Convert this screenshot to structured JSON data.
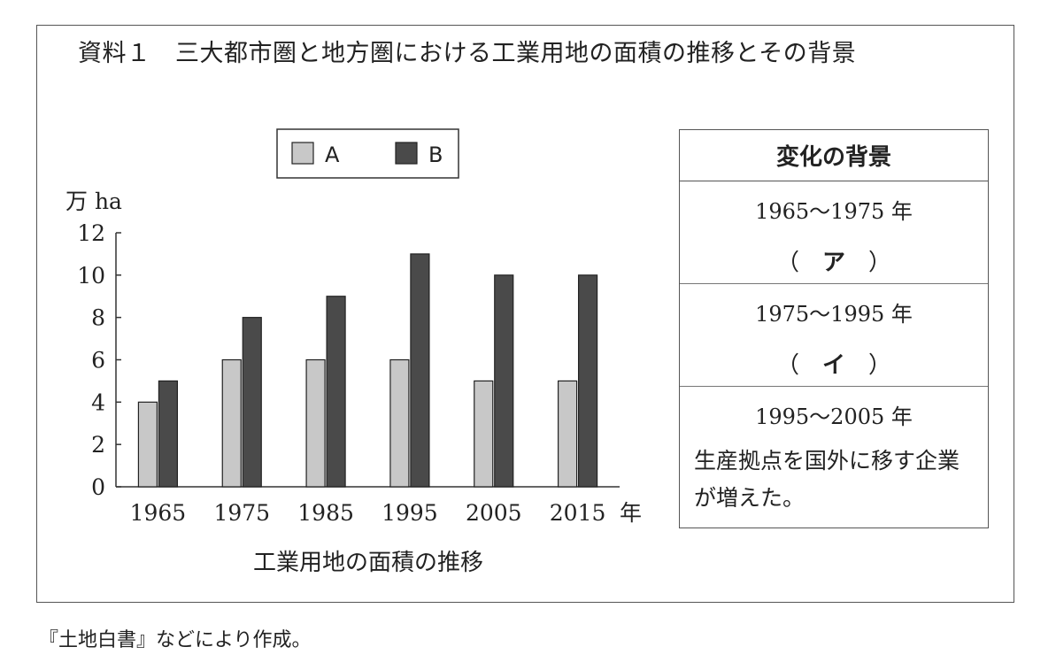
{
  "title": "資料１　三大都市圏と地方圏における工業用地の面積の推移とその背景",
  "source": "『土地白書』などにより作成。",
  "chart_data": {
    "type": "bar",
    "categories": [
      "1965",
      "1975",
      "1985",
      "1995",
      "2005",
      "2015"
    ],
    "series": [
      {
        "name": "A",
        "values": [
          4,
          6,
          6,
          6,
          5,
          5
        ],
        "color": "#c8c8c8"
      },
      {
        "name": "B",
        "values": [
          5,
          8,
          9,
          11,
          10,
          10
        ],
        "color": "#4a4a4a"
      }
    ],
    "ylim": [
      0,
      12
    ],
    "yticks": [
      "0",
      "2",
      "4",
      "6",
      "8",
      "10",
      "12"
    ],
    "yunit": "万 ha",
    "xunit": "年",
    "xlabel": "工業用地の面積の推移",
    "legend_position": "top",
    "grid": false
  },
  "background_table": {
    "header": "変化の背景",
    "rows": [
      {
        "period": "1965～1975 年",
        "paren_open": "（",
        "marker": "ア",
        "paren_close": "）"
      },
      {
        "period": "1975～1995 年",
        "paren_open": "（",
        "marker": "イ",
        "paren_close": "）"
      },
      {
        "period": "1995～2005 年",
        "description": "生産拠点を国外に移す企業が増えた。"
      }
    ]
  }
}
